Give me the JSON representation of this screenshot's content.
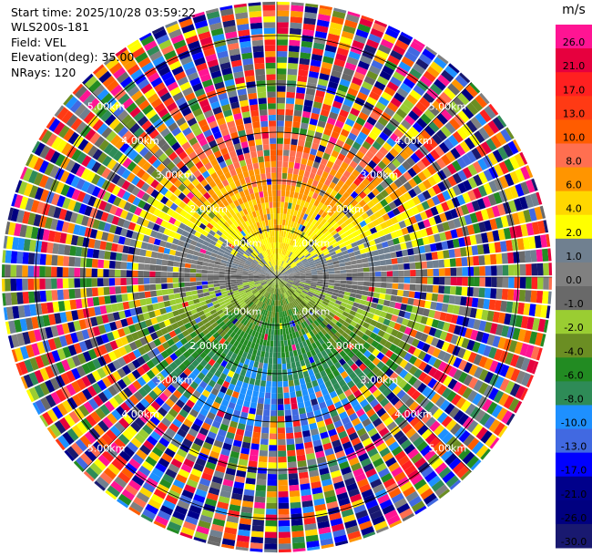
{
  "info": {
    "start_time": "Start time: 2025/10/28 03:59:22",
    "instrument": "WLS200s-181",
    "field": "Field: VEL",
    "elevation": "Elevation(deg): 35.00",
    "nrays": "NRays: 120"
  },
  "colorbar": {
    "unit": "m/s",
    "levels": [
      {
        "label": "26.0",
        "color": "#ff1493"
      },
      {
        "label": "21.0",
        "color": "#e6003e"
      },
      {
        "label": "17.0",
        "color": "#ff2020"
      },
      {
        "label": "13.0",
        "color": "#ff3a14"
      },
      {
        "label": "10.0",
        "color": "#ff5c00"
      },
      {
        "label": "8.0",
        "color": "#ff6f50"
      },
      {
        "label": "6.0",
        "color": "#ff9500"
      },
      {
        "label": "4.0",
        "color": "#ffd700"
      },
      {
        "label": "2.0",
        "color": "#ffff00"
      },
      {
        "label": "1.0",
        "color": "#708090"
      },
      {
        "label": "0.0",
        "color": "#808080"
      },
      {
        "label": "-1.0",
        "color": "#696969"
      },
      {
        "label": "-2.0",
        "color": "#9acd32"
      },
      {
        "label": "-4.0",
        "color": "#6b8e23"
      },
      {
        "label": "-6.0",
        "color": "#228b22"
      },
      {
        "label": "-8.0",
        "color": "#2e8b57"
      },
      {
        "label": "-10.0",
        "color": "#1e90ff"
      },
      {
        "label": "-13.0",
        "color": "#4169e1"
      },
      {
        "label": "-17.0",
        "color": "#0000ff"
      },
      {
        "label": "-21.0",
        "color": "#00008b"
      },
      {
        "label": "-26.0",
        "color": "#000080"
      },
      {
        "label": "-30.0",
        "color": "#191970"
      }
    ]
  },
  "chart_data": {
    "type": "heatmap",
    "projection": "polar (PPI)",
    "field": "VEL",
    "units": "m/s",
    "rays": 120,
    "range_rings_km": [
      1.0,
      2.0,
      3.0,
      4.0,
      5.0
    ],
    "range_ring_labels": [
      "1.00km",
      "2.00km",
      "3.00km",
      "4.00km",
      "5.00km"
    ],
    "max_range_km": 5.7,
    "color_range": [
      -30,
      30
    ],
    "description_pattern": "near-range dipole: negative (blue/green) velocities toward west, positive (yellow/red) toward east; outer ranges noisy",
    "grid": "on"
  }
}
